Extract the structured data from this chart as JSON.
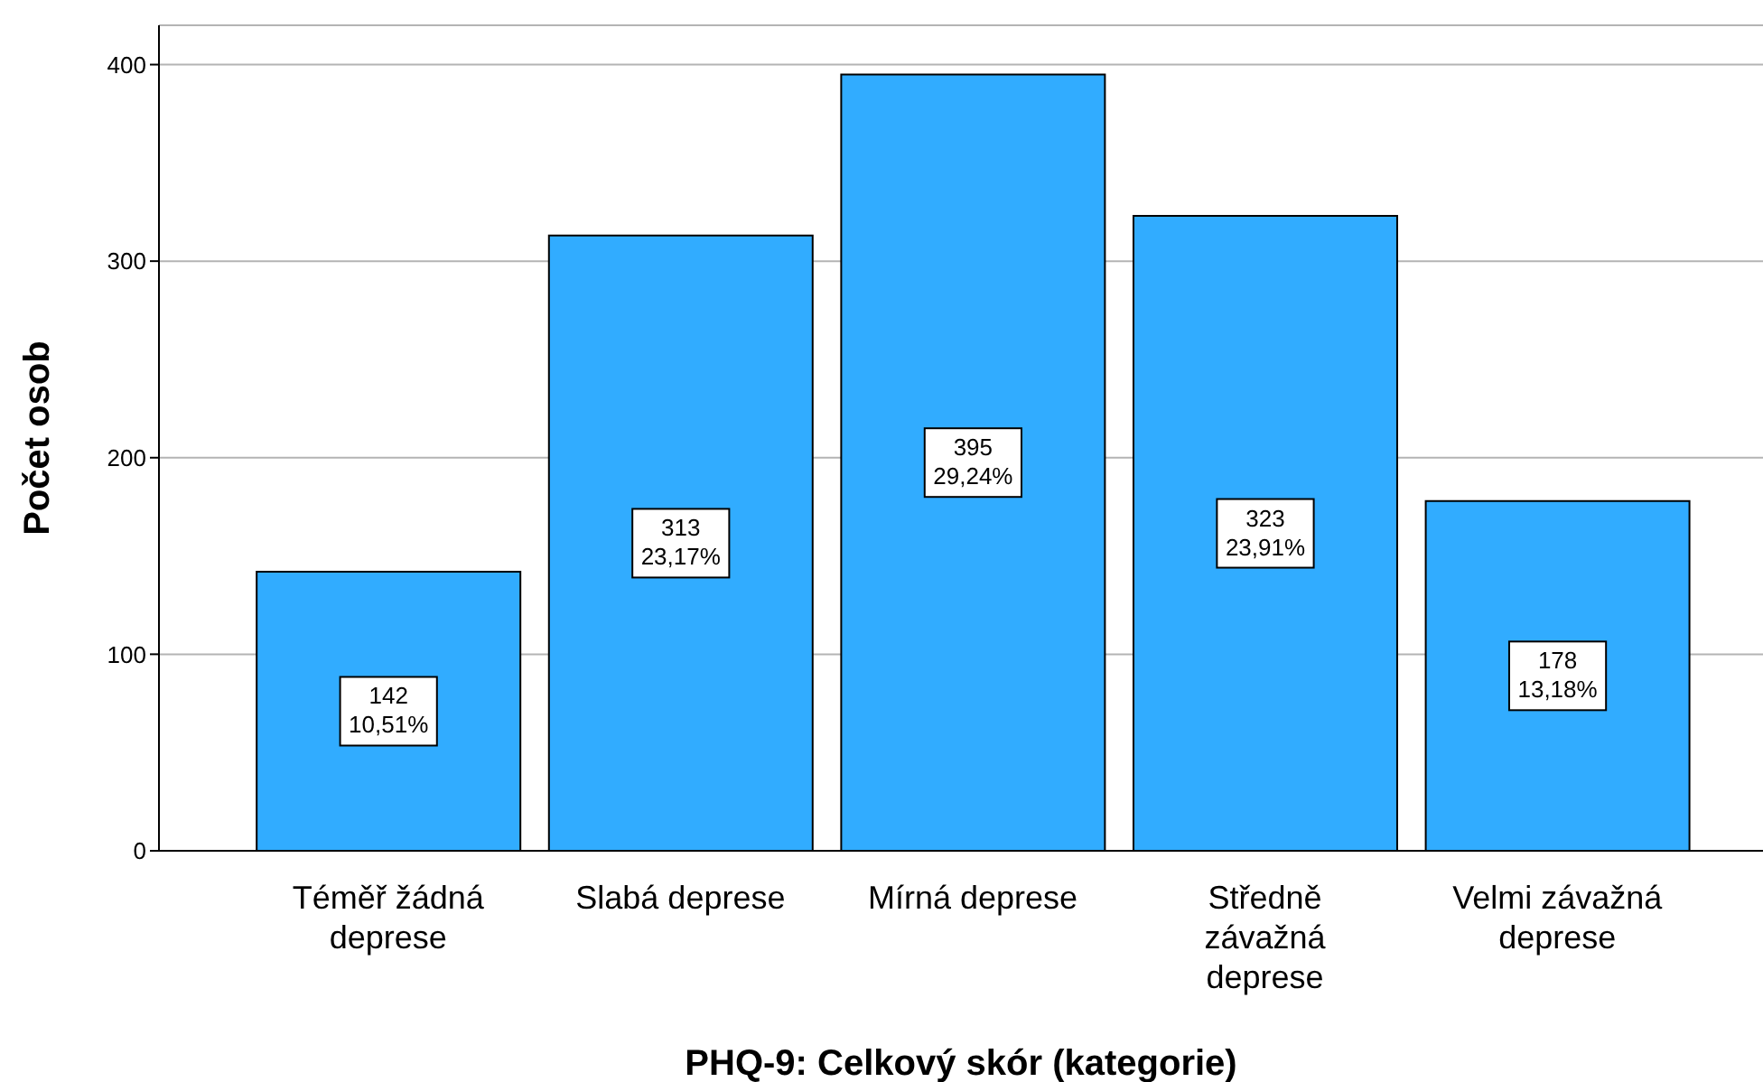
{
  "chart_data": {
    "type": "bar",
    "xlabel": "PHQ-9: Celkový skór (kategorie)",
    "ylabel": "Počet osob",
    "categories": [
      "Téměř žádná deprese",
      "Slabá deprese",
      "Mírná deprese",
      "Středně závažná deprese",
      "Velmi závažná deprese"
    ],
    "values": [
      142,
      313,
      395,
      323,
      178
    ],
    "value_labels": [
      "142\n10,51%",
      "313\n23,17%",
      "395\n29,24%",
      "323\n23,91%",
      "178\n13,18%"
    ],
    "color": "#31acff",
    "ylim": [
      0,
      420
    ],
    "yticks": [
      0,
      100,
      200,
      300,
      400
    ],
    "grid": "y"
  }
}
